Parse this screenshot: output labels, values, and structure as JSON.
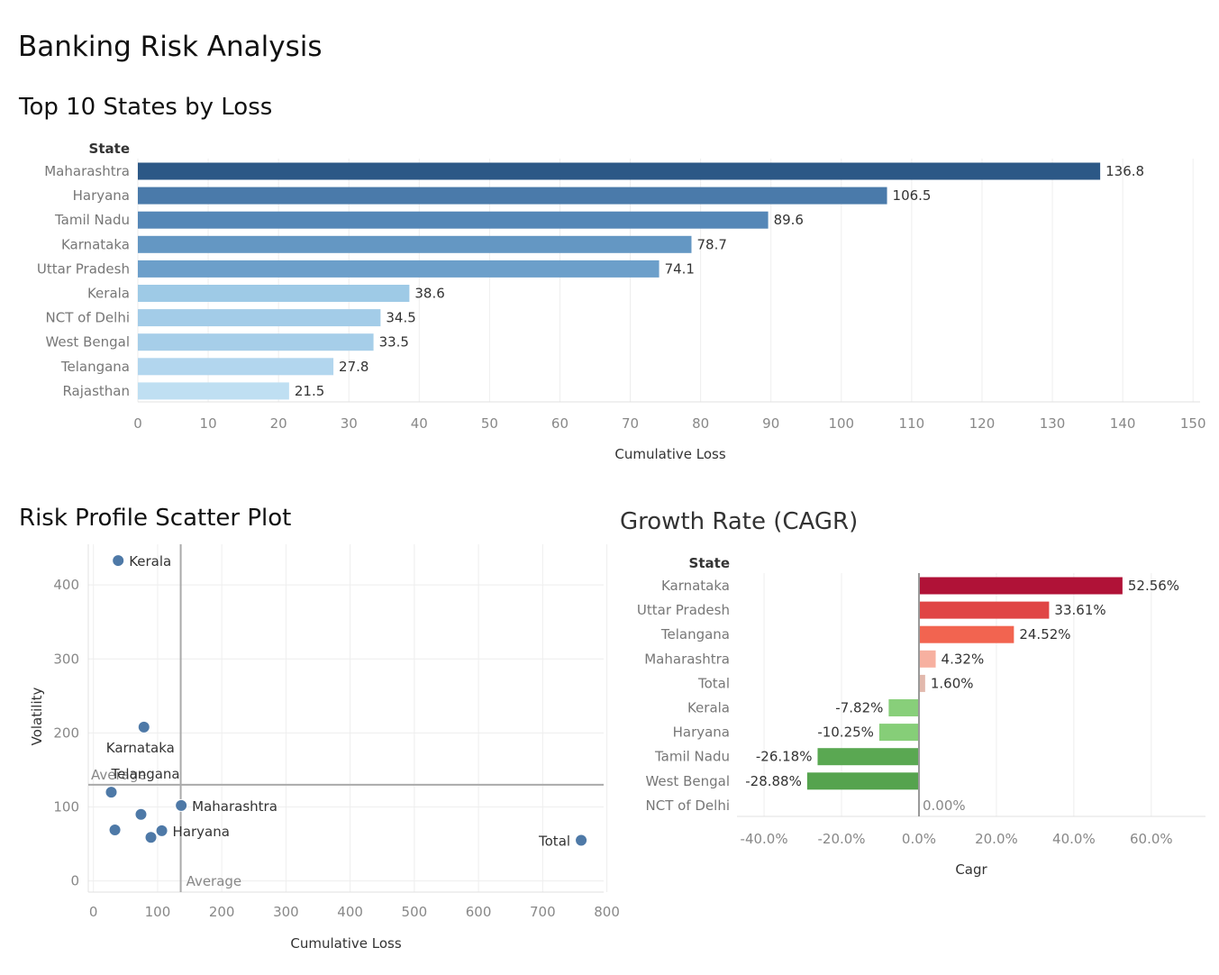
{
  "page": {
    "title": "Banking Risk Analysis"
  },
  "chart_data": [
    {
      "id": "top-states",
      "type": "bar",
      "orientation": "horizontal",
      "title": "Top 10 States by Loss",
      "row_header": "State",
      "xlabel": "Cumulative Loss",
      "categories": [
        "Maharashtra",
        "Haryana",
        "Tamil Nadu",
        "Karnataka",
        "Uttar Pradesh",
        "Kerala",
        "NCT of Delhi",
        "West Bengal",
        "Telangana",
        "Rajasthan"
      ],
      "values": [
        136.8,
        106.5,
        89.6,
        78.7,
        74.1,
        38.6,
        34.5,
        33.5,
        27.8,
        21.5
      ],
      "value_labels": [
        "136.8",
        "106.5",
        "89.6",
        "78.7",
        "74.1",
        "38.6",
        "34.5",
        "33.5",
        "27.8",
        "21.5"
      ],
      "xlim": [
        0,
        151
      ],
      "xticks": [
        0,
        10,
        20,
        30,
        40,
        50,
        60,
        70,
        80,
        90,
        100,
        110,
        120,
        130,
        140,
        150
      ],
      "colors": [
        "#2c5886",
        "#4a7aaa",
        "#5587b7",
        "#6497c3",
        "#6c9fca",
        "#9ecae6",
        "#a3cce8",
        "#a6cee9",
        "#b2d6ee",
        "#bfdff2"
      ],
      "grid": true
    },
    {
      "id": "risk-scatter",
      "type": "scatter",
      "title": "Risk Profile Scatter Plot",
      "xlabel": "Cumulative Loss",
      "ylabel": "Volatility",
      "xlim": [
        -8,
        795
      ],
      "ylim": [
        -15,
        455
      ],
      "xticks": [
        0,
        100,
        200,
        300,
        400,
        500,
        600,
        700,
        800
      ],
      "yticks": [
        0,
        100,
        200,
        300,
        400
      ],
      "points": [
        {
          "label": "Kerala",
          "x": 38.6,
          "y": 433
        },
        {
          "label": "Karnataka",
          "x": 78.7,
          "y": 208
        },
        {
          "label": "Telangana",
          "x": 27.8,
          "y": 120
        },
        {
          "label": "",
          "x": 74.1,
          "y": 90
        },
        {
          "label": "Maharashtra",
          "x": 136.8,
          "y": 102
        },
        {
          "label": "",
          "x": 33.5,
          "y": 69
        },
        {
          "label": "",
          "x": 89.6,
          "y": 59
        },
        {
          "label": "Haryana",
          "x": 106.5,
          "y": 68
        },
        {
          "label": "Total",
          "x": 760,
          "y": 55
        }
      ],
      "reference_lines": [
        {
          "axis": "x",
          "value": 136,
          "label": "Average"
        },
        {
          "axis": "y",
          "value": 130,
          "label": "Average"
        }
      ],
      "marker_color": "#4e79a7",
      "grid": true
    },
    {
      "id": "cagr",
      "type": "bar",
      "orientation": "horizontal",
      "title": "Growth Rate (CAGR)",
      "row_header": "State",
      "xlabel": "Cagr",
      "categories": [
        "Karnataka",
        "Uttar Pradesh",
        "Telangana",
        "Maharashtra",
        "Total",
        "Kerala",
        "Haryana",
        "Tamil Nadu",
        "West Bengal",
        "NCT of Delhi"
      ],
      "values": [
        52.56,
        33.61,
        24.52,
        4.32,
        1.6,
        -7.82,
        -10.25,
        -26.18,
        -28.88,
        0.0
      ],
      "value_labels": [
        "52.56%",
        "33.61%",
        "24.52%",
        "4.32%",
        "1.60%",
        "-7.82%",
        "-10.25%",
        "-26.18%",
        "-28.88%",
        "0.00%"
      ],
      "xlim": [
        -47,
        74
      ],
      "xticks": [
        -40,
        -20,
        0,
        20,
        40,
        60
      ],
      "xtick_labels": [
        "-40.0%",
        "-20.0%",
        "0.0%",
        "20.0%",
        "40.0%",
        "60.0%"
      ],
      "colors": [
        "#b01237",
        "#e04545",
        "#f26450",
        "#f7b0a0",
        "#e2b8ac",
        "#88cf7a",
        "#86ce78",
        "#5aa852",
        "#55a34e",
        "#cccccc"
      ],
      "grid": true
    }
  ]
}
